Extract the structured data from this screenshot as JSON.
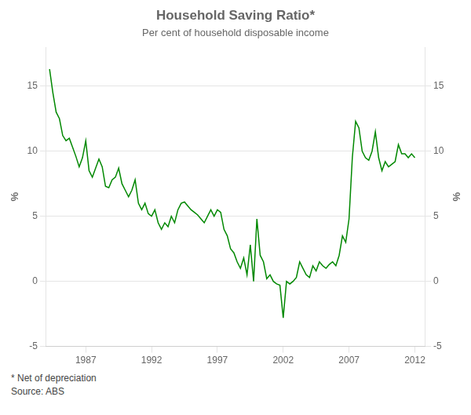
{
  "chart_data": {
    "type": "line",
    "title": "Household Saving Ratio*",
    "subtitle": "Per cent of household disposable income",
    "ylabel": "%",
    "y2label": "%",
    "footnote": "*   Net of depreciation",
    "source": "Source: ABS",
    "color": "#008800",
    "grid": true,
    "xlim": [
      1984.0,
      2012.75
    ],
    "xticks": [
      1987,
      1992,
      1997,
      2002,
      2007,
      2012
    ],
    "ylim": [
      -5,
      18
    ],
    "yticks": [
      -5,
      0,
      5,
      10,
      15
    ],
    "y2lim": [
      -5,
      18
    ],
    "y2ticks": [
      -5,
      0,
      5,
      10,
      15
    ],
    "x": [
      1984.25,
      1984.5,
      1984.75,
      1985.0,
      1985.25,
      1985.5,
      1985.75,
      1986.0,
      1986.25,
      1986.5,
      1986.75,
      1987.0,
      1987.25,
      1987.5,
      1987.75,
      1988.0,
      1988.25,
      1988.5,
      1988.75,
      1989.0,
      1989.25,
      1989.5,
      1989.75,
      1990.0,
      1990.25,
      1990.5,
      1990.75,
      1991.0,
      1991.25,
      1991.5,
      1991.75,
      1992.0,
      1992.25,
      1992.5,
      1992.75,
      1993.0,
      1993.25,
      1993.5,
      1993.75,
      1994.0,
      1994.25,
      1994.5,
      1994.75,
      1995.0,
      1995.25,
      1995.5,
      1995.75,
      1996.0,
      1996.25,
      1996.5,
      1996.75,
      1997.0,
      1997.25,
      1997.5,
      1997.75,
      1998.0,
      1998.25,
      1998.5,
      1998.75,
      1999.0,
      1999.25,
      1999.5,
      1999.75,
      2000.0,
      2000.25,
      2000.5,
      2000.75,
      2001.0,
      2001.25,
      2001.5,
      2001.75,
      2002.0,
      2002.25,
      2002.5,
      2002.75,
      2003.0,
      2003.25,
      2003.5,
      2003.75,
      2004.0,
      2004.25,
      2004.5,
      2004.75,
      2005.0,
      2005.25,
      2005.5,
      2005.75,
      2006.0,
      2006.25,
      2006.5,
      2006.75,
      2007.0,
      2007.25,
      2007.5,
      2007.75,
      2008.0,
      2008.25,
      2008.5,
      2008.75,
      2009.0,
      2009.25,
      2009.5,
      2009.75,
      2010.0,
      2010.25,
      2010.5,
      2010.75,
      2011.0,
      2011.25,
      2011.5,
      2011.75,
      2012.0
    ],
    "values": [
      16.3,
      14.5,
      13.0,
      12.5,
      11.2,
      10.8,
      11.0,
      10.3,
      9.6,
      8.8,
      9.5,
      10.8,
      8.5,
      8.0,
      8.7,
      9.4,
      8.8,
      7.3,
      7.2,
      7.8,
      8.0,
      8.7,
      7.5,
      7.0,
      6.5,
      7.0,
      7.8,
      6.0,
      5.5,
      6.0,
      5.2,
      5.0,
      5.5,
      4.5,
      4.0,
      4.5,
      4.2,
      5.0,
      4.5,
      5.5,
      6.0,
      6.1,
      5.8,
      5.5,
      5.3,
      5.1,
      4.8,
      4.5,
      5.0,
      5.5,
      5.0,
      5.5,
      5.3,
      4.0,
      3.5,
      2.5,
      2.2,
      1.5,
      1.0,
      1.8,
      0.5,
      2.8,
      0.0,
      4.8,
      2.0,
      1.5,
      0.2,
      0.5,
      0.0,
      -0.2,
      -0.3,
      -2.8,
      0.0,
      -0.2,
      0.0,
      0.3,
      1.5,
      1.0,
      0.5,
      0.3,
      1.2,
      0.8,
      1.5,
      1.2,
      1.0,
      1.3,
      1.5,
      1.2,
      2.0,
      3.5,
      3.0,
      4.8,
      9.5,
      12.3,
      11.8,
      10.0,
      9.5,
      9.3,
      10.0,
      11.5,
      9.5,
      8.5,
      9.2,
      8.8,
      9.0,
      9.2,
      10.5,
      9.8,
      9.8,
      9.5,
      9.8,
      9.5
    ]
  }
}
